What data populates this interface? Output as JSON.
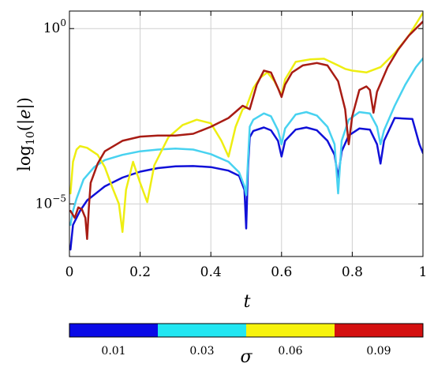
{
  "chart_data": {
    "type": "line",
    "title": "",
    "xlabel": "t",
    "ylabel": "log10(|e|)",
    "y_scale": "log",
    "xlim": [
      0,
      1
    ],
    "ylim_log10": [
      -6.5,
      0.5
    ],
    "grid": true,
    "x_ticks": [
      {
        "value": 0,
        "label": "0"
      },
      {
        "value": 0.2,
        "label": "0.2"
      },
      {
        "value": 0.4,
        "label": "0.4"
      },
      {
        "value": 0.6,
        "label": "0.6"
      },
      {
        "value": 0.8,
        "label": "0.8"
      },
      {
        "value": 1,
        "label": "1"
      }
    ],
    "y_ticks": [
      {
        "log10": 0,
        "base": "10",
        "exp": "0"
      },
      {
        "log10": -5,
        "base": "10",
        "exp": "−5"
      }
    ],
    "colorbar": {
      "label": "σ",
      "placement": "bottom",
      "segments": [
        {
          "label": "0.01",
          "color": "#0a0ae6"
        },
        {
          "label": "0.03",
          "color": "#22e6f2"
        },
        {
          "label": "0.06",
          "color": "#f7f30c"
        },
        {
          "label": "0.09",
          "color": "#d41010"
        }
      ]
    },
    "series": [
      {
        "color": "#1010d8",
        "points": [
          [
            0.003,
            -6.3
          ],
          [
            0.01,
            -5.6
          ],
          [
            0.03,
            -5.2
          ],
          [
            0.05,
            -4.9
          ],
          [
            0.1,
            -4.5
          ],
          [
            0.15,
            -4.25
          ],
          [
            0.2,
            -4.08
          ],
          [
            0.25,
            -3.98
          ],
          [
            0.3,
            -3.93
          ],
          [
            0.35,
            -3.92
          ],
          [
            0.4,
            -3.95
          ],
          [
            0.45,
            -4.05
          ],
          [
            0.48,
            -4.2
          ],
          [
            0.495,
            -4.6
          ],
          [
            0.5,
            -5.7
          ],
          [
            0.505,
            -4.0
          ],
          [
            0.51,
            -3.1
          ],
          [
            0.52,
            -2.92
          ],
          [
            0.55,
            -2.82
          ],
          [
            0.57,
            -2.9
          ],
          [
            0.59,
            -3.2
          ],
          [
            0.6,
            -3.65
          ],
          [
            0.61,
            -3.2
          ],
          [
            0.64,
            -2.88
          ],
          [
            0.67,
            -2.82
          ],
          [
            0.7,
            -2.9
          ],
          [
            0.73,
            -3.2
          ],
          [
            0.75,
            -3.6
          ],
          [
            0.76,
            -4.25
          ],
          [
            0.77,
            -3.5
          ],
          [
            0.79,
            -3.05
          ],
          [
            0.82,
            -2.85
          ],
          [
            0.85,
            -2.88
          ],
          [
            0.87,
            -3.3
          ],
          [
            0.88,
            -3.85
          ],
          [
            0.89,
            -3.2
          ],
          [
            0.92,
            -2.55
          ],
          [
            0.97,
            -2.58
          ],
          [
            0.99,
            -3.3
          ],
          [
            1.0,
            -3.55
          ]
        ]
      },
      {
        "color": "#48d2f0",
        "points": [
          [
            0.003,
            -5.6
          ],
          [
            0.01,
            -5.2
          ],
          [
            0.02,
            -4.85
          ],
          [
            0.04,
            -4.3
          ],
          [
            0.07,
            -3.95
          ],
          [
            0.1,
            -3.75
          ],
          [
            0.15,
            -3.6
          ],
          [
            0.2,
            -3.5
          ],
          [
            0.25,
            -3.45
          ],
          [
            0.3,
            -3.42
          ],
          [
            0.35,
            -3.45
          ],
          [
            0.4,
            -3.58
          ],
          [
            0.45,
            -3.8
          ],
          [
            0.48,
            -4.1
          ],
          [
            0.495,
            -4.5
          ],
          [
            0.5,
            -4.75
          ],
          [
            0.505,
            -3.8
          ],
          [
            0.51,
            -2.8
          ],
          [
            0.52,
            -2.6
          ],
          [
            0.55,
            -2.42
          ],
          [
            0.57,
            -2.5
          ],
          [
            0.59,
            -2.9
          ],
          [
            0.6,
            -3.3
          ],
          [
            0.61,
            -2.85
          ],
          [
            0.64,
            -2.45
          ],
          [
            0.67,
            -2.38
          ],
          [
            0.7,
            -2.48
          ],
          [
            0.73,
            -2.8
          ],
          [
            0.75,
            -3.3
          ],
          [
            0.76,
            -4.7
          ],
          [
            0.77,
            -3.2
          ],
          [
            0.79,
            -2.6
          ],
          [
            0.82,
            -2.38
          ],
          [
            0.85,
            -2.42
          ],
          [
            0.87,
            -2.8
          ],
          [
            0.88,
            -3.3
          ],
          [
            0.89,
            -2.9
          ],
          [
            0.92,
            -2.2
          ],
          [
            0.95,
            -1.6
          ],
          [
            0.98,
            -1.1
          ],
          [
            1.0,
            -0.85
          ]
        ]
      },
      {
        "color": "#eeee12",
        "points": [
          [
            0.003,
            -4.7
          ],
          [
            0.01,
            -3.8
          ],
          [
            0.02,
            -3.45
          ],
          [
            0.03,
            -3.35
          ],
          [
            0.05,
            -3.4
          ],
          [
            0.08,
            -3.6
          ],
          [
            0.1,
            -3.95
          ],
          [
            0.12,
            -4.5
          ],
          [
            0.14,
            -5.0
          ],
          [
            0.15,
            -5.8
          ],
          [
            0.16,
            -4.6
          ],
          [
            0.18,
            -3.8
          ],
          [
            0.2,
            -4.4
          ],
          [
            0.22,
            -4.95
          ],
          [
            0.24,
            -3.9
          ],
          [
            0.28,
            -3.1
          ],
          [
            0.32,
            -2.75
          ],
          [
            0.36,
            -2.6
          ],
          [
            0.4,
            -2.7
          ],
          [
            0.43,
            -3.2
          ],
          [
            0.45,
            -3.65
          ],
          [
            0.47,
            -2.8
          ],
          [
            0.49,
            -2.3
          ],
          [
            0.5,
            -2.25
          ],
          [
            0.52,
            -1.7
          ],
          [
            0.54,
            -1.4
          ],
          [
            0.56,
            -1.25
          ],
          [
            0.58,
            -1.5
          ],
          [
            0.6,
            -1.9
          ],
          [
            0.61,
            -1.45
          ],
          [
            0.64,
            -0.95
          ],
          [
            0.68,
            -0.88
          ],
          [
            0.72,
            -0.86
          ],
          [
            0.76,
            -1.05
          ],
          [
            0.78,
            -1.15
          ],
          [
            0.8,
            -1.2
          ],
          [
            0.84,
            -1.25
          ],
          [
            0.88,
            -1.1
          ],
          [
            0.92,
            -0.7
          ],
          [
            0.96,
            -0.2
          ],
          [
            1.0,
            0.45
          ]
        ]
      },
      {
        "color": "#a81c14",
        "points": [
          [
            0.003,
            -5.2
          ],
          [
            0.015,
            -5.4
          ],
          [
            0.025,
            -5.1
          ],
          [
            0.035,
            -5.15
          ],
          [
            0.045,
            -5.4
          ],
          [
            0.05,
            -6.0
          ],
          [
            0.055,
            -5.1
          ],
          [
            0.06,
            -4.4
          ],
          [
            0.08,
            -3.85
          ],
          [
            0.1,
            -3.5
          ],
          [
            0.15,
            -3.2
          ],
          [
            0.2,
            -3.08
          ],
          [
            0.25,
            -3.05
          ],
          [
            0.3,
            -3.05
          ],
          [
            0.35,
            -3.0
          ],
          [
            0.4,
            -2.8
          ],
          [
            0.45,
            -2.55
          ],
          [
            0.49,
            -2.2
          ],
          [
            0.51,
            -2.3
          ],
          [
            0.53,
            -1.6
          ],
          [
            0.55,
            -1.2
          ],
          [
            0.57,
            -1.25
          ],
          [
            0.59,
            -1.7
          ],
          [
            0.6,
            -1.95
          ],
          [
            0.61,
            -1.6
          ],
          [
            0.63,
            -1.25
          ],
          [
            0.66,
            -1.05
          ],
          [
            0.7,
            -0.98
          ],
          [
            0.73,
            -1.05
          ],
          [
            0.76,
            -1.5
          ],
          [
            0.78,
            -2.3
          ],
          [
            0.79,
            -3.3
          ],
          [
            0.8,
            -2.5
          ],
          [
            0.82,
            -1.75
          ],
          [
            0.84,
            -1.65
          ],
          [
            0.85,
            -1.75
          ],
          [
            0.86,
            -2.4
          ],
          [
            0.87,
            -1.8
          ],
          [
            0.9,
            -1.1
          ],
          [
            0.93,
            -0.6
          ],
          [
            0.96,
            -0.2
          ],
          [
            1.0,
            0.2
          ]
        ]
      }
    ]
  }
}
